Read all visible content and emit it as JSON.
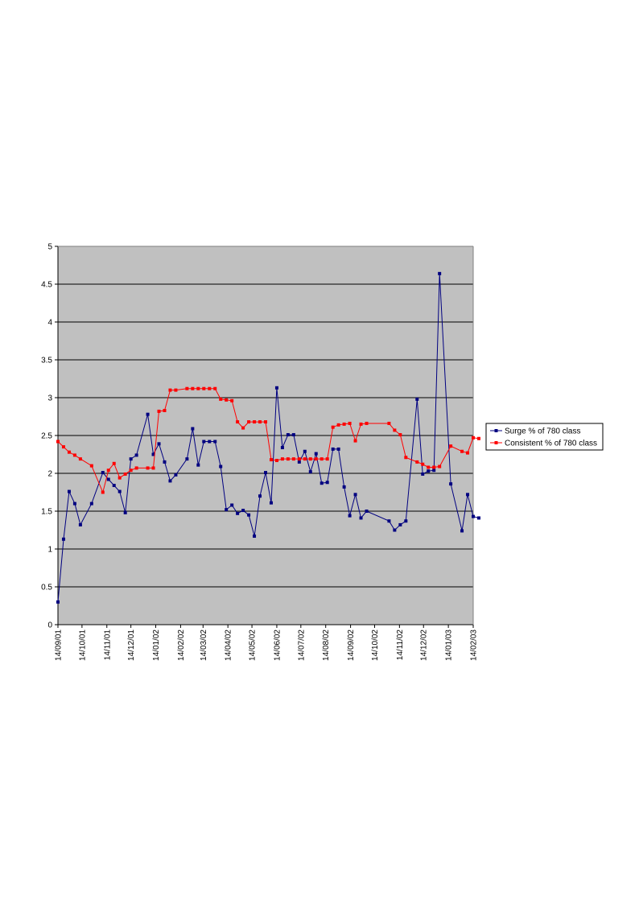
{
  "chart_data": {
    "type": "line",
    "title": "",
    "xlabel": "",
    "ylabel": "",
    "ylim": [
      0,
      5
    ],
    "y_ticks": [
      "0",
      "0.5",
      "1",
      "1.5",
      "2",
      "2.5",
      "3",
      "3.5",
      "4",
      "4.5",
      "5"
    ],
    "x_range": [
      "2001-09-14",
      "2003-02-14"
    ],
    "x_tick_labels": [
      "14/09/01",
      "14/10/01",
      "14/11/01",
      "14/12/01",
      "14/01/02",
      "14/02/02",
      "14/03/02",
      "14/04/02",
      "14/05/02",
      "14/06/02",
      "14/07/02",
      "14/08/02",
      "14/09/02",
      "14/10/02",
      "14/11/02",
      "14/12/02",
      "14/01/03",
      "14/02/03"
    ],
    "x_tick_dates": [
      "2001-09-14",
      "2001-10-14",
      "2001-11-14",
      "2001-12-14",
      "2002-01-14",
      "2002-02-14",
      "2002-03-14",
      "2002-04-14",
      "2002-05-14",
      "2002-06-14",
      "2002-07-14",
      "2002-08-14",
      "2002-09-14",
      "2002-10-14",
      "2002-11-14",
      "2002-12-14",
      "2003-01-14",
      "2003-02-14"
    ],
    "grid": "horizontal",
    "plot_background": "#c0c0c0",
    "legend_position": "right",
    "series": [
      {
        "name": "Surge % of 780 class",
        "color": "#000080",
        "marker": "square",
        "x": [
          "2001-09-14",
          "2001-09-21",
          "2001-09-28",
          "2001-10-05",
          "2001-10-12",
          "2001-10-26",
          "2001-11-09",
          "2001-11-16",
          "2001-11-23",
          "2001-11-30",
          "2001-12-07",
          "2001-12-14",
          "2001-12-21",
          "2002-01-04",
          "2002-01-11",
          "2002-01-18",
          "2002-01-25",
          "2002-02-01",
          "2002-02-08",
          "2002-02-22",
          "2002-03-01",
          "2002-03-08",
          "2002-03-15",
          "2002-03-22",
          "2002-03-29",
          "2002-04-05",
          "2002-04-12",
          "2002-04-19",
          "2002-04-26",
          "2002-05-03",
          "2002-05-10",
          "2002-05-17",
          "2002-05-24",
          "2002-05-31",
          "2002-06-07",
          "2002-06-14",
          "2002-06-21",
          "2002-06-28",
          "2002-07-05",
          "2002-07-12",
          "2002-07-19",
          "2002-07-26",
          "2002-08-02",
          "2002-08-09",
          "2002-08-16",
          "2002-08-23",
          "2002-08-30",
          "2002-09-06",
          "2002-09-13",
          "2002-09-20",
          "2002-09-27",
          "2002-10-04",
          "2002-11-01",
          "2002-11-08",
          "2002-11-15",
          "2002-11-22",
          "2002-12-06",
          "2002-12-13",
          "2002-12-20",
          "2002-12-27",
          "2003-01-03",
          "2003-01-17",
          "2003-01-31",
          "2003-02-07",
          "2003-02-14",
          "2003-02-21"
        ],
        "values": [
          0.3,
          1.13,
          1.76,
          1.6,
          1.32,
          1.6,
          2.01,
          1.92,
          1.84,
          1.76,
          1.48,
          2.19,
          2.24,
          2.78,
          2.25,
          2.39,
          2.15,
          1.9,
          1.98,
          2.19,
          2.59,
          2.11,
          2.42,
          2.42,
          2.42,
          2.09,
          1.52,
          1.58,
          1.47,
          1.51,
          1.45,
          1.17,
          1.7,
          2.01,
          1.61,
          3.13,
          2.34,
          2.51,
          2.51,
          2.15,
          2.29,
          2.02,
          2.26,
          1.87,
          1.88,
          2.32,
          2.32,
          1.82,
          1.44,
          1.72,
          1.41,
          1.5,
          1.37,
          1.25,
          1.32,
          1.37,
          2.98,
          1.99,
          2.03,
          2.04,
          4.64,
          1.86,
          1.24,
          1.72,
          1.43,
          1.41
        ]
      },
      {
        "name": "Consistent % of 780 class",
        "color": "#ff0000",
        "marker": "square",
        "x": [
          "2001-09-14",
          "2001-09-21",
          "2001-09-28",
          "2001-10-05",
          "2001-10-12",
          "2001-10-26",
          "2001-11-09",
          "2001-11-16",
          "2001-11-23",
          "2001-11-30",
          "2001-12-07",
          "2001-12-14",
          "2001-12-21",
          "2002-01-04",
          "2002-01-11",
          "2002-01-18",
          "2002-01-25",
          "2002-02-01",
          "2002-02-08",
          "2002-02-22",
          "2002-03-01",
          "2002-03-08",
          "2002-03-15",
          "2002-03-22",
          "2002-03-29",
          "2002-04-05",
          "2002-04-12",
          "2002-04-19",
          "2002-04-26",
          "2002-05-03",
          "2002-05-10",
          "2002-05-17",
          "2002-05-24",
          "2002-05-31",
          "2002-06-07",
          "2002-06-14",
          "2002-06-21",
          "2002-06-28",
          "2002-07-05",
          "2002-07-12",
          "2002-07-19",
          "2002-07-26",
          "2002-08-02",
          "2002-08-09",
          "2002-08-16",
          "2002-08-23",
          "2002-08-30",
          "2002-09-06",
          "2002-09-13",
          "2002-09-20",
          "2002-09-27",
          "2002-10-04",
          "2002-11-01",
          "2002-11-08",
          "2002-11-15",
          "2002-11-22",
          "2002-12-06",
          "2002-12-13",
          "2002-12-20",
          "2002-12-27",
          "2003-01-03",
          "2003-01-17",
          "2003-01-31",
          "2003-02-07",
          "2003-02-14",
          "2003-02-21"
        ],
        "values": [
          2.42,
          2.35,
          2.28,
          2.24,
          2.19,
          2.1,
          1.75,
          2.04,
          2.13,
          1.94,
          1.99,
          2.04,
          2.07,
          2.07,
          2.07,
          2.82,
          2.83,
          3.1,
          3.1,
          3.12,
          3.12,
          3.12,
          3.12,
          3.12,
          3.12,
          2.98,
          2.97,
          2.96,
          2.68,
          2.6,
          2.68,
          2.68,
          2.68,
          2.68,
          2.18,
          2.17,
          2.19,
          2.19,
          2.19,
          2.19,
          2.19,
          2.19,
          2.19,
          2.19,
          2.19,
          2.61,
          2.64,
          2.65,
          2.66,
          2.43,
          2.65,
          2.66,
          2.66,
          2.57,
          2.51,
          2.21,
          2.15,
          2.12,
          2.08,
          2.08,
          2.09,
          2.36,
          2.29,
          2.27,
          2.47,
          2.46
        ]
      }
    ]
  }
}
